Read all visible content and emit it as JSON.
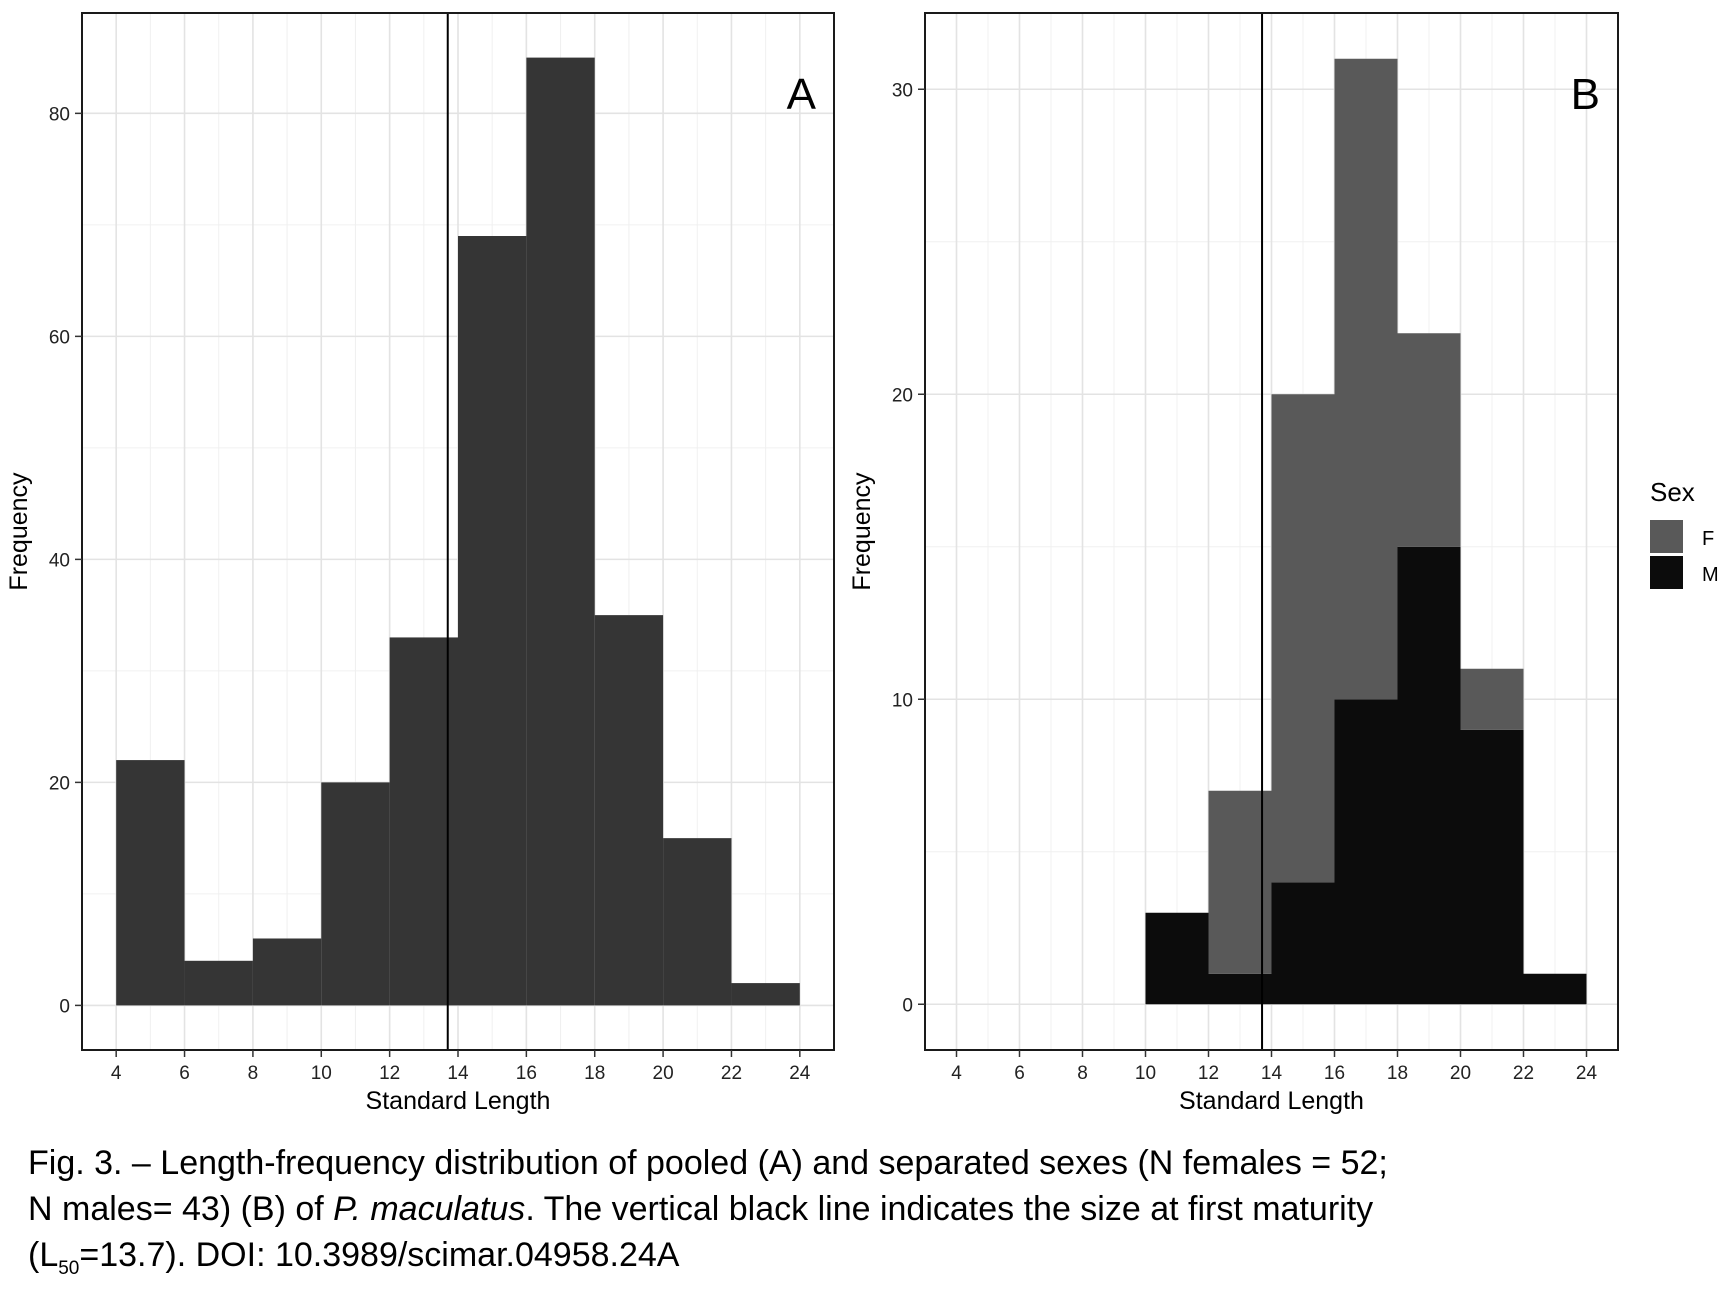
{
  "chart_data": [
    {
      "type": "bar",
      "panel": "A",
      "panel_label": "A",
      "xlabel": "Standard Length",
      "ylabel": "Frequency",
      "xlim": [
        3,
        25
      ],
      "ylim": [
        -4,
        89
      ],
      "x_ticks": [
        4,
        6,
        8,
        10,
        12,
        14,
        16,
        18,
        20,
        22,
        24
      ],
      "y_ticks": [
        0,
        20,
        40,
        60,
        80
      ],
      "bins": [
        [
          4,
          6
        ],
        [
          6,
          8
        ],
        [
          8,
          10
        ],
        [
          10,
          12
        ],
        [
          12,
          14
        ],
        [
          14,
          16
        ],
        [
          16,
          18
        ],
        [
          18,
          20
        ],
        [
          20,
          22
        ],
        [
          22,
          24
        ]
      ],
      "series": [
        {
          "values": [
            22,
            4,
            6,
            20,
            33,
            69,
            85,
            35,
            15,
            2
          ],
          "color": "#353535"
        }
      ],
      "vline": 13.7,
      "grid": true,
      "stacked": false
    },
    {
      "type": "bar",
      "panel": "B",
      "panel_label": "B",
      "xlabel": "Standard Length",
      "ylabel": "Frequency",
      "xlim": [
        3,
        25
      ],
      "ylim": [
        -1.5,
        32.5
      ],
      "x_ticks": [
        4,
        6,
        8,
        10,
        12,
        14,
        16,
        18,
        20,
        22,
        24
      ],
      "y_ticks": [
        0,
        10,
        20,
        30
      ],
      "bins": [
        [
          10,
          12
        ],
        [
          12,
          14
        ],
        [
          14,
          16
        ],
        [
          16,
          18
        ],
        [
          18,
          20
        ],
        [
          20,
          22
        ],
        [
          22,
          24
        ]
      ],
      "stacked": true,
      "series": [
        {
          "name": "M",
          "values": [
            3,
            1,
            4,
            10,
            15,
            9,
            1
          ],
          "color": "#0c0c0c"
        },
        {
          "name": "F",
          "values": [
            0,
            6,
            16,
            21,
            7,
            2,
            0
          ],
          "color": "#595959"
        }
      ],
      "vline": 13.7,
      "grid": true,
      "legend": {
        "title": "Sex",
        "position": "right",
        "entries": [
          "F",
          "M"
        ]
      }
    }
  ],
  "caption": {
    "part1": "Fig. 3. – Length-frequency distribution of pooled (A) and separated sexes (N females = 52;",
    "part2": "N males= 43) (B) of ",
    "species": "P. maculatus",
    "part3": ". The vertical black line indicates the size at first maturity",
    "part4": "(L",
    "sub": "50",
    "part5": "=13.7). DOI: 10.3989/scimar.04958.24A"
  }
}
